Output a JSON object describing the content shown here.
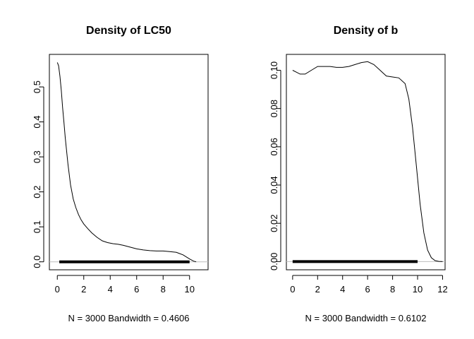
{
  "chart_data": [
    {
      "type": "line",
      "title": "Density of LC50",
      "xlabel": "N = 3000   Bandwidth = 0.4606",
      "ylabel": "",
      "xlim": [
        -0.6,
        11.4
      ],
      "ylim": [
        -0.0228,
        0.593
      ],
      "xticks": [
        0,
        2,
        4,
        6,
        8,
        10
      ],
      "yticks": [
        0.0,
        0.1,
        0.2,
        0.3,
        0.4,
        0.5
      ],
      "ytick_labels": [
        "0.0",
        "0.1",
        "0.2",
        "0.3",
        "0.4",
        "0.5"
      ],
      "grid": false,
      "baseline": 0,
      "series": [
        {
          "x": [
            0.0,
            0.1,
            0.2,
            0.3,
            0.4,
            0.5,
            0.6,
            0.8,
            1.0,
            1.2,
            1.4,
            1.6,
            1.8,
            2.0,
            2.3,
            2.6,
            3.0,
            3.4,
            3.8,
            4.2,
            4.6,
            5.0,
            5.5,
            6.0,
            6.5,
            7.0,
            7.5,
            8.0,
            8.5,
            9.0,
            9.5,
            10.0,
            10.3,
            10.5
          ],
          "y": [
            0.57,
            0.56,
            0.53,
            0.49,
            0.44,
            0.4,
            0.355,
            0.28,
            0.22,
            0.18,
            0.155,
            0.135,
            0.12,
            0.108,
            0.095,
            0.083,
            0.07,
            0.06,
            0.055,
            0.052,
            0.05,
            0.047,
            0.042,
            0.037,
            0.034,
            0.032,
            0.031,
            0.031,
            0.029,
            0.027,
            0.02,
            0.008,
            0.002,
            0.0
          ]
        }
      ],
      "rug": [
        0.15,
        10.0
      ]
    },
    {
      "type": "line",
      "title": "Density of b",
      "xlabel": "N = 3000   Bandwidth = 0.6102",
      "ylabel": "",
      "xlim": [
        -0.5,
        12.2
      ],
      "ylim": [
        -0.0043,
        0.1083
      ],
      "xticks": [
        0,
        2,
        4,
        6,
        8,
        10,
        12
      ],
      "yticks": [
        0.0,
        0.02,
        0.04,
        0.06,
        0.08,
        0.1
      ],
      "ytick_labels": [
        "0.00",
        "0.02",
        "0.04",
        "0.06",
        "0.08",
        "0.10"
      ],
      "grid": false,
      "baseline": 0,
      "series": [
        {
          "x": [
            0.0,
            0.3,
            0.6,
            1.0,
            1.5,
            2.0,
            2.5,
            3.0,
            3.5,
            4.0,
            4.5,
            5.0,
            5.5,
            6.0,
            6.5,
            7.0,
            7.5,
            8.0,
            8.5,
            9.0,
            9.3,
            9.6,
            9.9,
            10.2,
            10.5,
            10.8,
            11.1,
            11.4,
            11.7,
            12.0
          ],
          "y": [
            0.1,
            0.099,
            0.098,
            0.098,
            0.1,
            0.102,
            0.102,
            0.102,
            0.1015,
            0.1015,
            0.102,
            0.103,
            0.104,
            0.1045,
            0.103,
            0.1,
            0.097,
            0.0965,
            0.096,
            0.093,
            0.085,
            0.07,
            0.05,
            0.03,
            0.015,
            0.006,
            0.002,
            0.0005,
            0.0001,
            0.0
          ]
        }
      ],
      "rug": [
        0.0,
        10.0
      ]
    }
  ]
}
